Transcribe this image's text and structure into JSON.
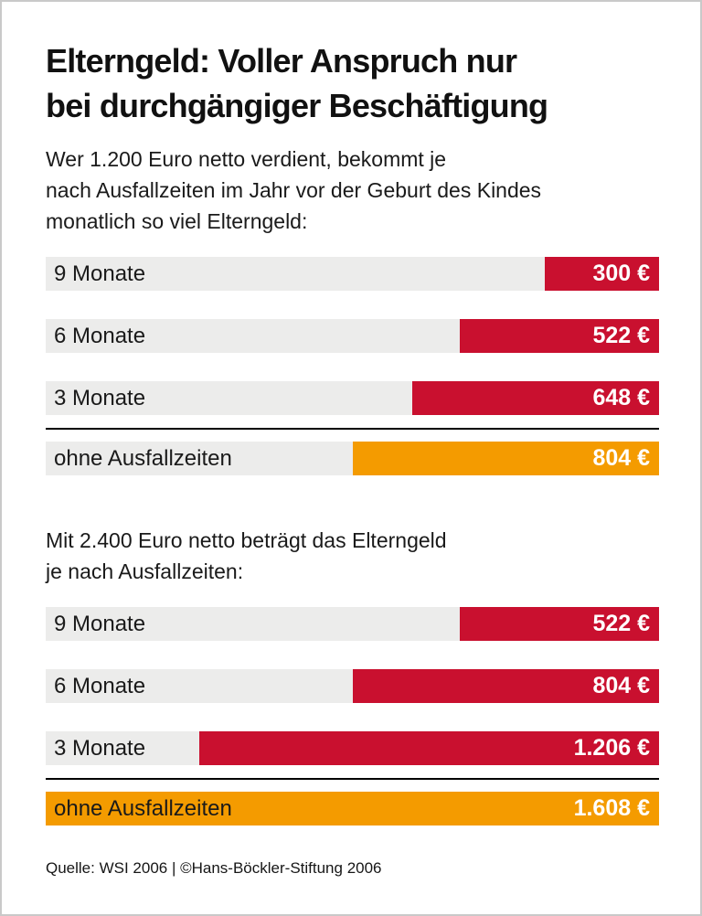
{
  "page": {
    "title_lines": [
      "Elterngeld: Voller Anspruch nur",
      "bei durchgängiger Beschäftigung"
    ],
    "source": "Quelle: WSI 2006 | ©Hans-Böckler-Stiftung 2006"
  },
  "colors": {
    "bar_red": "#C9102F",
    "bar_orange": "#F49B00",
    "track_gray": "#ECECEB",
    "text": "#1A1A1A",
    "page_border": "#C9C9C9"
  },
  "chart_data": [
    {
      "type": "bar",
      "orientation": "horizontal",
      "title": "Wer 1.200 Euro netto verdient, bekommt je nach Ausfallzeiten im Jahr vor der Geburt des Kindes monatlich so viel Elterngeld:",
      "title_display_lines": [
        "Wer 1.200 Euro netto verdient, bekommt je",
        "nach Ausfallzeiten im Jahr vor der Geburt des Kindes",
        "monatlich so viel Elterngeld:"
      ],
      "categories": [
        "9 Monate",
        "6 Monate",
        "3 Monate",
        "ohne Ausfallzeiten"
      ],
      "values": [
        300,
        522,
        648,
        804
      ],
      "value_labels": [
        "300 €",
        "522 €",
        "648 €",
        "804 €"
      ],
      "unit": "€",
      "xlim": [
        0,
        1608
      ],
      "xmax": 1608,
      "bar_colors": [
        "red",
        "red",
        "red",
        "orange"
      ],
      "grid": false,
      "legend": false
    },
    {
      "type": "bar",
      "orientation": "horizontal",
      "title": "Mit 2.400 Euro netto beträgt das Elterngeld je nach Ausfallzeiten:",
      "title_display_lines": [
        "Mit 2.400 Euro netto beträgt das Elterngeld",
        "je nach Ausfallzeiten:"
      ],
      "categories": [
        "9 Monate",
        "6 Monate",
        "3 Monate",
        "ohne Ausfallzeiten"
      ],
      "values": [
        522,
        804,
        1206,
        1608
      ],
      "value_labels": [
        "522 €",
        "804 €",
        "1.206 €",
        "1.608 €"
      ],
      "unit": "€",
      "xlim": [
        0,
        1608
      ],
      "xmax": 1608,
      "bar_colors": [
        "red",
        "red",
        "red",
        "orange"
      ],
      "grid": false,
      "legend": false
    }
  ]
}
